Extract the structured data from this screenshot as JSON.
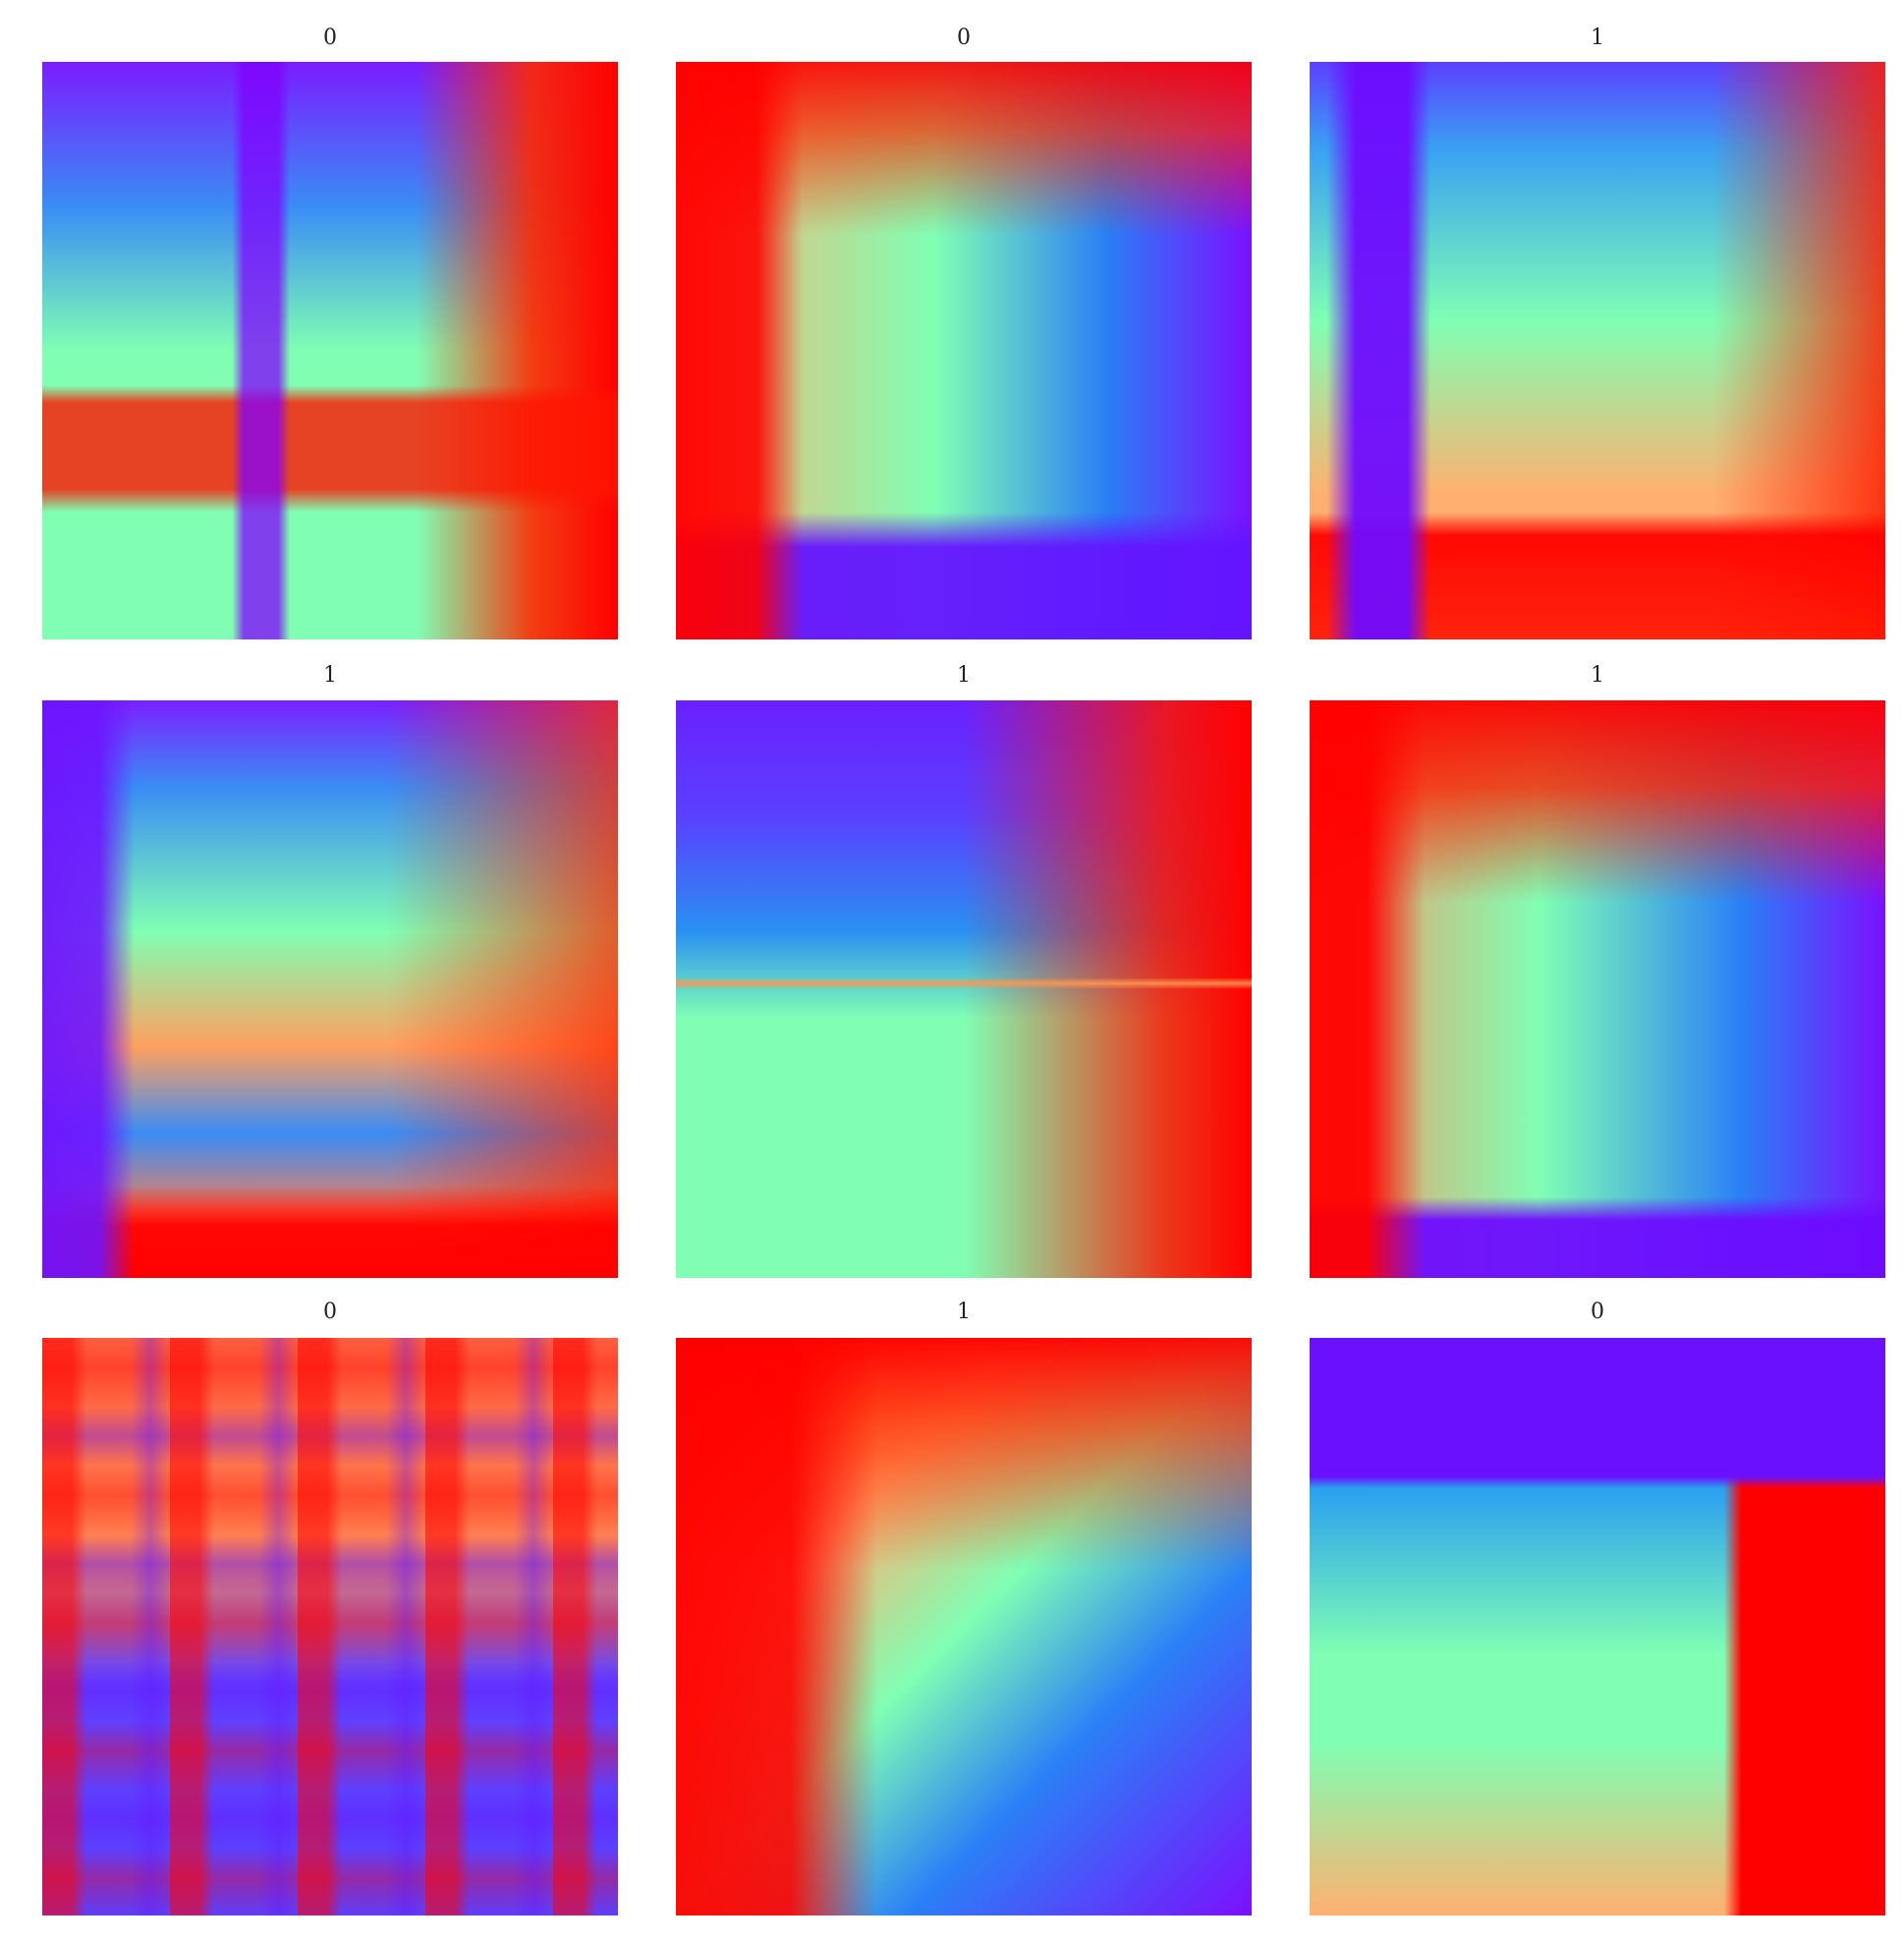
{
  "panels": [
    {
      "title": "0"
    },
    {
      "title": "0"
    },
    {
      "title": "1"
    },
    {
      "title": "1"
    },
    {
      "title": "1"
    },
    {
      "title": "1"
    },
    {
      "title": "0"
    },
    {
      "title": "1"
    },
    {
      "title": "0"
    }
  ]
}
